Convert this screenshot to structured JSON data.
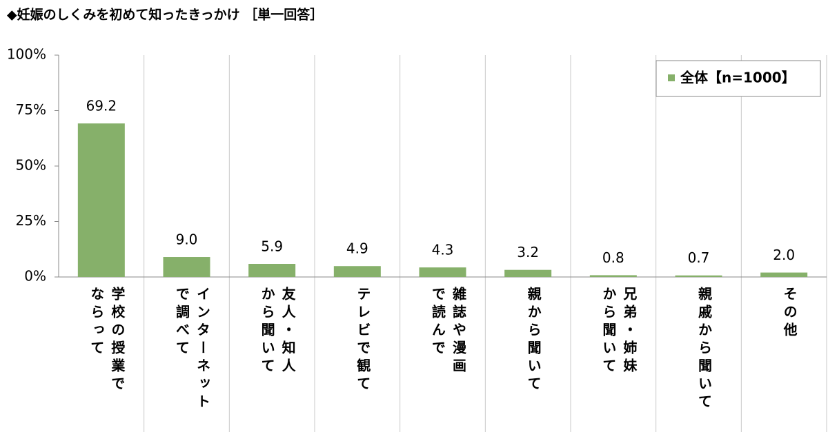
{
  "chart_data": {
    "type": "bar",
    "title": "◆妊娠のしくみを初めて知ったきっかけ ［単一回答］",
    "categories": [
      "学校の授業で\nならって",
      "インターネット\nで調べて",
      "友人・知人\nから聞いて",
      "テレビで観て",
      "雑誌や漫画\nで読んで",
      "親から聞いて",
      "兄弟・姉妹\nから聞いて",
      "親戚から聞いて",
      "その他"
    ],
    "series": [
      {
        "name": "全体【n=1000】",
        "color": "#86b06a",
        "values": [
          69.2,
          9.0,
          5.9,
          4.9,
          4.3,
          3.2,
          0.8,
          0.7,
          2.0
        ],
        "value_labels": [
          "69.2",
          "9.0",
          "5.9",
          "4.9",
          "4.3",
          "3.2",
          "0.8",
          "0.7",
          "2.0"
        ]
      }
    ],
    "ylim": [
      0,
      100
    ],
    "yticks": [
      {
        "value": 0,
        "label": "0%"
      },
      {
        "value": 25,
        "label": "25%"
      },
      {
        "value": 50,
        "label": "50%"
      },
      {
        "value": 75,
        "label": "75%"
      },
      {
        "value": 100,
        "label": "100%"
      }
    ],
    "legend": "upper right"
  }
}
